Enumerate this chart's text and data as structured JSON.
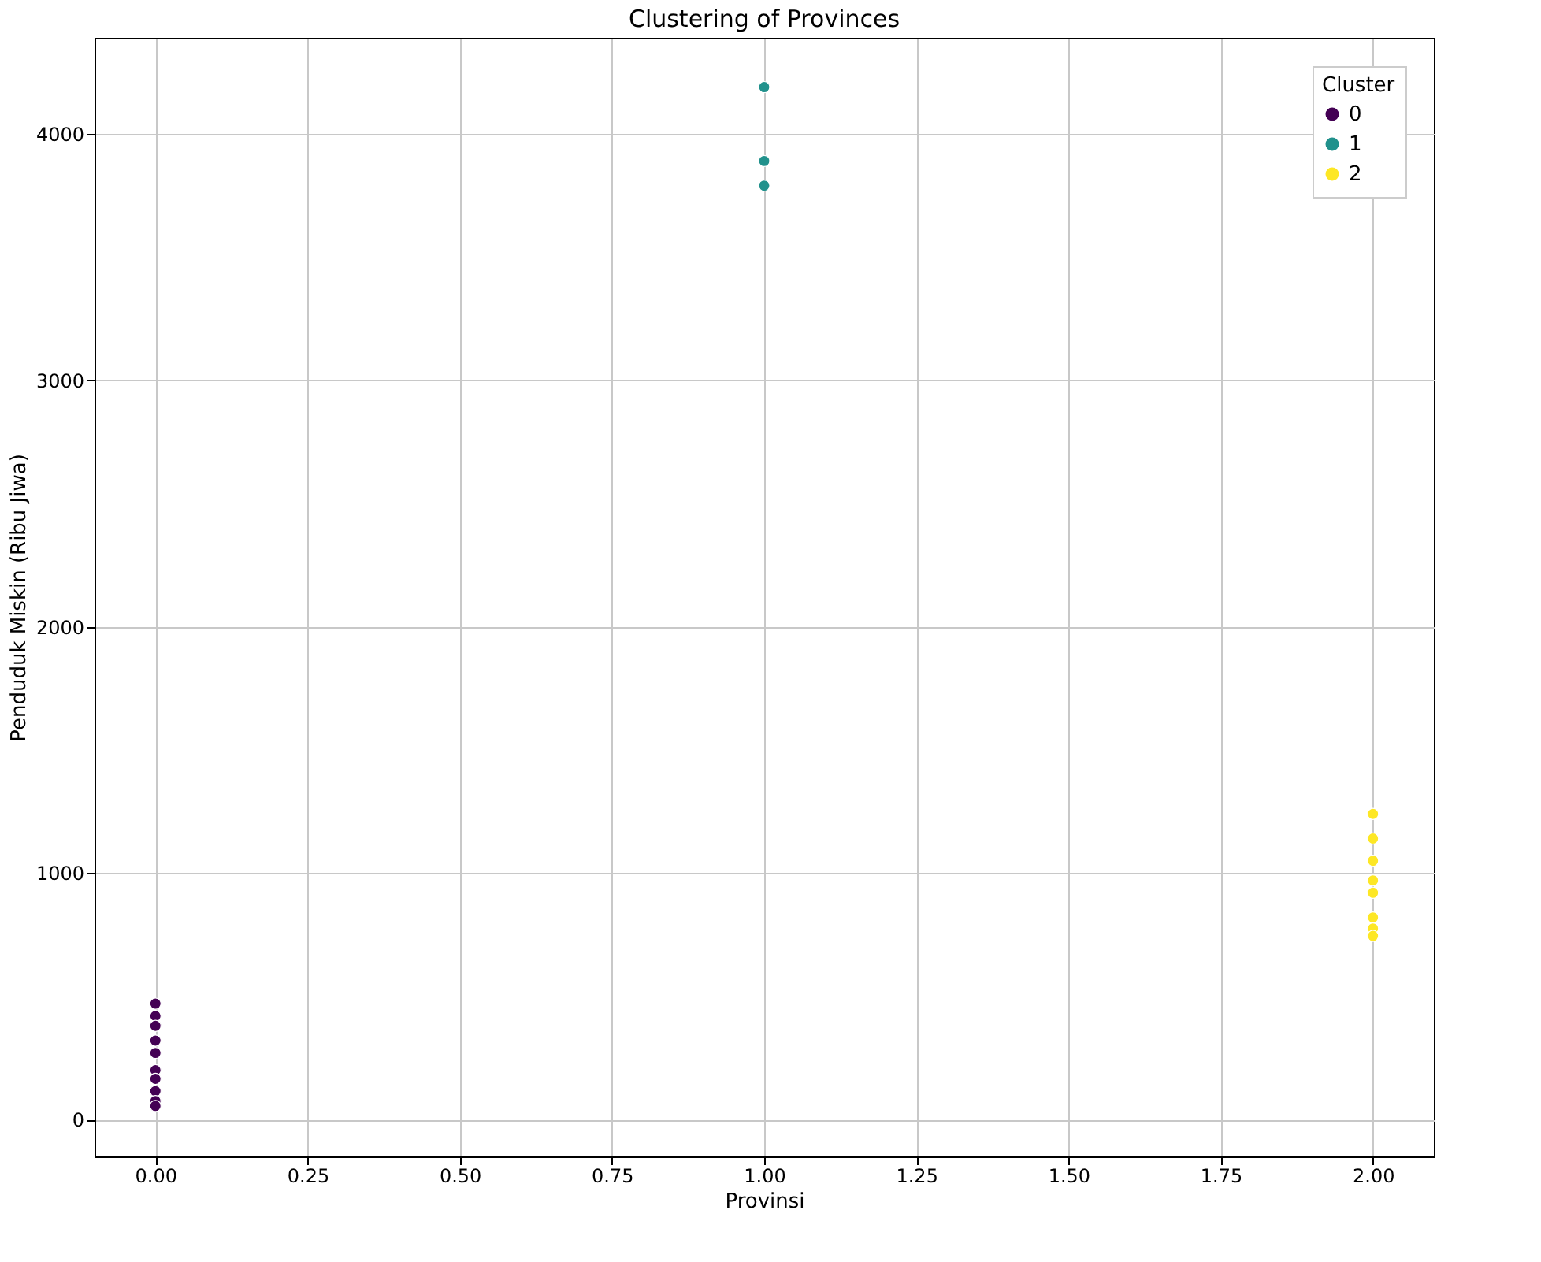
{
  "chart_data": {
    "type": "scatter",
    "title": "Clustering of Provinces",
    "xlabel": "Provinsi",
    "ylabel": "Penduduk Miskin (Ribu Jiwa)",
    "legend_title": "Cluster",
    "legend": "top right",
    "grid": true,
    "marker": "circle",
    "xlim": [
      -0.1,
      2.1
    ],
    "ylim": [
      -150,
      4390
    ],
    "xticks": [
      {
        "value": 0,
        "label": "0.00"
      },
      {
        "value": 0.25,
        "label": "0.25"
      },
      {
        "value": 0.5,
        "label": "0.50"
      },
      {
        "value": 0.75,
        "label": "0.75"
      },
      {
        "value": 1,
        "label": "1.00"
      },
      {
        "value": 1.25,
        "label": "1.25"
      },
      {
        "value": 1.5,
        "label": "1.50"
      },
      {
        "value": 1.75,
        "label": "1.75"
      },
      {
        "value": 2,
        "label": "2.00"
      }
    ],
    "yticks": [
      0,
      1000,
      2000,
      3000,
      4000
    ],
    "series": [
      {
        "name": "0",
        "color": "#440154",
        "x": [
          0,
          0,
          0,
          0,
          0,
          0,
          0,
          0,
          0,
          0
        ],
        "values": [
          470,
          420,
          380,
          320,
          270,
          200,
          165,
          115,
          75,
          55
        ]
      },
      {
        "name": "1",
        "color": "#21918c",
        "x": [
          1,
          1,
          1
        ],
        "values": [
          4190,
          3890,
          3790
        ]
      },
      {
        "name": "2",
        "color": "#fde725",
        "x": [
          2,
          2,
          2,
          2,
          2,
          2,
          2,
          2
        ],
        "values": [
          1240,
          1140,
          1050,
          970,
          920,
          820,
          775,
          745
        ]
      }
    ]
  }
}
